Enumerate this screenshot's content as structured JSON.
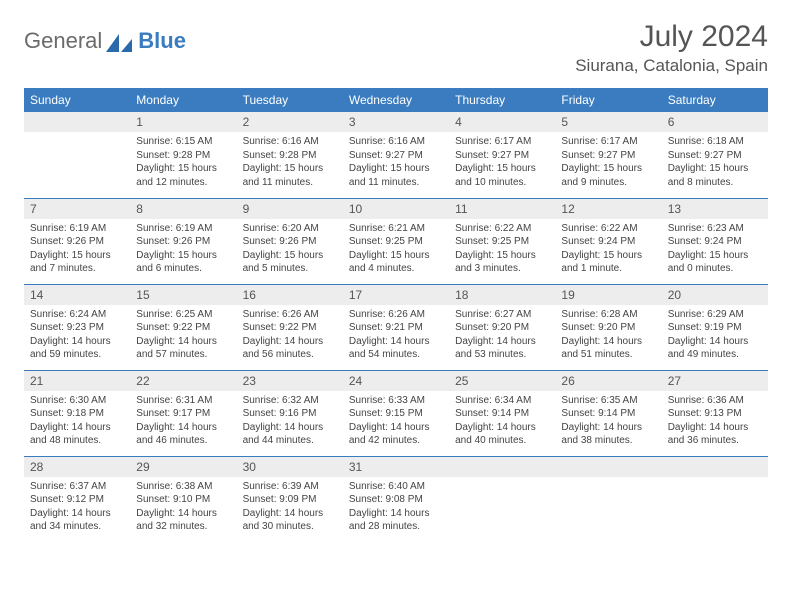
{
  "logo": {
    "text1": "General",
    "text2": "Blue"
  },
  "title": "July 2024",
  "subtitle": "Siurana, Catalonia, Spain",
  "colors": {
    "header_bg": "#3a7cbf",
    "header_text": "#ffffff",
    "daynum_bg": "#ededed",
    "text": "#444444",
    "border": "#3a7cbf"
  },
  "fonts": {
    "title_size": 30,
    "subtitle_size": 17,
    "dayheader_size": 12,
    "daynum_size": 12,
    "body_size": 10
  },
  "day_headers": [
    "Sunday",
    "Monday",
    "Tuesday",
    "Wednesday",
    "Thursday",
    "Friday",
    "Saturday"
  ],
  "weeks": [
    [
      {
        "n": "",
        "sunrise": "",
        "sunset": "",
        "daylight": ""
      },
      {
        "n": "1",
        "sunrise": "Sunrise: 6:15 AM",
        "sunset": "Sunset: 9:28 PM",
        "daylight": "Daylight: 15 hours and 12 minutes."
      },
      {
        "n": "2",
        "sunrise": "Sunrise: 6:16 AM",
        "sunset": "Sunset: 9:28 PM",
        "daylight": "Daylight: 15 hours and 11 minutes."
      },
      {
        "n": "3",
        "sunrise": "Sunrise: 6:16 AM",
        "sunset": "Sunset: 9:27 PM",
        "daylight": "Daylight: 15 hours and 11 minutes."
      },
      {
        "n": "4",
        "sunrise": "Sunrise: 6:17 AM",
        "sunset": "Sunset: 9:27 PM",
        "daylight": "Daylight: 15 hours and 10 minutes."
      },
      {
        "n": "5",
        "sunrise": "Sunrise: 6:17 AM",
        "sunset": "Sunset: 9:27 PM",
        "daylight": "Daylight: 15 hours and 9 minutes."
      },
      {
        "n": "6",
        "sunrise": "Sunrise: 6:18 AM",
        "sunset": "Sunset: 9:27 PM",
        "daylight": "Daylight: 15 hours and 8 minutes."
      }
    ],
    [
      {
        "n": "7",
        "sunrise": "Sunrise: 6:19 AM",
        "sunset": "Sunset: 9:26 PM",
        "daylight": "Daylight: 15 hours and 7 minutes."
      },
      {
        "n": "8",
        "sunrise": "Sunrise: 6:19 AM",
        "sunset": "Sunset: 9:26 PM",
        "daylight": "Daylight: 15 hours and 6 minutes."
      },
      {
        "n": "9",
        "sunrise": "Sunrise: 6:20 AM",
        "sunset": "Sunset: 9:26 PM",
        "daylight": "Daylight: 15 hours and 5 minutes."
      },
      {
        "n": "10",
        "sunrise": "Sunrise: 6:21 AM",
        "sunset": "Sunset: 9:25 PM",
        "daylight": "Daylight: 15 hours and 4 minutes."
      },
      {
        "n": "11",
        "sunrise": "Sunrise: 6:22 AM",
        "sunset": "Sunset: 9:25 PM",
        "daylight": "Daylight: 15 hours and 3 minutes."
      },
      {
        "n": "12",
        "sunrise": "Sunrise: 6:22 AM",
        "sunset": "Sunset: 9:24 PM",
        "daylight": "Daylight: 15 hours and 1 minute."
      },
      {
        "n": "13",
        "sunrise": "Sunrise: 6:23 AM",
        "sunset": "Sunset: 9:24 PM",
        "daylight": "Daylight: 15 hours and 0 minutes."
      }
    ],
    [
      {
        "n": "14",
        "sunrise": "Sunrise: 6:24 AM",
        "sunset": "Sunset: 9:23 PM",
        "daylight": "Daylight: 14 hours and 59 minutes."
      },
      {
        "n": "15",
        "sunrise": "Sunrise: 6:25 AM",
        "sunset": "Sunset: 9:22 PM",
        "daylight": "Daylight: 14 hours and 57 minutes."
      },
      {
        "n": "16",
        "sunrise": "Sunrise: 6:26 AM",
        "sunset": "Sunset: 9:22 PM",
        "daylight": "Daylight: 14 hours and 56 minutes."
      },
      {
        "n": "17",
        "sunrise": "Sunrise: 6:26 AM",
        "sunset": "Sunset: 9:21 PM",
        "daylight": "Daylight: 14 hours and 54 minutes."
      },
      {
        "n": "18",
        "sunrise": "Sunrise: 6:27 AM",
        "sunset": "Sunset: 9:20 PM",
        "daylight": "Daylight: 14 hours and 53 minutes."
      },
      {
        "n": "19",
        "sunrise": "Sunrise: 6:28 AM",
        "sunset": "Sunset: 9:20 PM",
        "daylight": "Daylight: 14 hours and 51 minutes."
      },
      {
        "n": "20",
        "sunrise": "Sunrise: 6:29 AM",
        "sunset": "Sunset: 9:19 PM",
        "daylight": "Daylight: 14 hours and 49 minutes."
      }
    ],
    [
      {
        "n": "21",
        "sunrise": "Sunrise: 6:30 AM",
        "sunset": "Sunset: 9:18 PM",
        "daylight": "Daylight: 14 hours and 48 minutes."
      },
      {
        "n": "22",
        "sunrise": "Sunrise: 6:31 AM",
        "sunset": "Sunset: 9:17 PM",
        "daylight": "Daylight: 14 hours and 46 minutes."
      },
      {
        "n": "23",
        "sunrise": "Sunrise: 6:32 AM",
        "sunset": "Sunset: 9:16 PM",
        "daylight": "Daylight: 14 hours and 44 minutes."
      },
      {
        "n": "24",
        "sunrise": "Sunrise: 6:33 AM",
        "sunset": "Sunset: 9:15 PM",
        "daylight": "Daylight: 14 hours and 42 minutes."
      },
      {
        "n": "25",
        "sunrise": "Sunrise: 6:34 AM",
        "sunset": "Sunset: 9:14 PM",
        "daylight": "Daylight: 14 hours and 40 minutes."
      },
      {
        "n": "26",
        "sunrise": "Sunrise: 6:35 AM",
        "sunset": "Sunset: 9:14 PM",
        "daylight": "Daylight: 14 hours and 38 minutes."
      },
      {
        "n": "27",
        "sunrise": "Sunrise: 6:36 AM",
        "sunset": "Sunset: 9:13 PM",
        "daylight": "Daylight: 14 hours and 36 minutes."
      }
    ],
    [
      {
        "n": "28",
        "sunrise": "Sunrise: 6:37 AM",
        "sunset": "Sunset: 9:12 PM",
        "daylight": "Daylight: 14 hours and 34 minutes."
      },
      {
        "n": "29",
        "sunrise": "Sunrise: 6:38 AM",
        "sunset": "Sunset: 9:10 PM",
        "daylight": "Daylight: 14 hours and 32 minutes."
      },
      {
        "n": "30",
        "sunrise": "Sunrise: 6:39 AM",
        "sunset": "Sunset: 9:09 PM",
        "daylight": "Daylight: 14 hours and 30 minutes."
      },
      {
        "n": "31",
        "sunrise": "Sunrise: 6:40 AM",
        "sunset": "Sunset: 9:08 PM",
        "daylight": "Daylight: 14 hours and 28 minutes."
      },
      {
        "n": "",
        "sunrise": "",
        "sunset": "",
        "daylight": ""
      },
      {
        "n": "",
        "sunrise": "",
        "sunset": "",
        "daylight": ""
      },
      {
        "n": "",
        "sunrise": "",
        "sunset": "",
        "daylight": ""
      }
    ]
  ]
}
